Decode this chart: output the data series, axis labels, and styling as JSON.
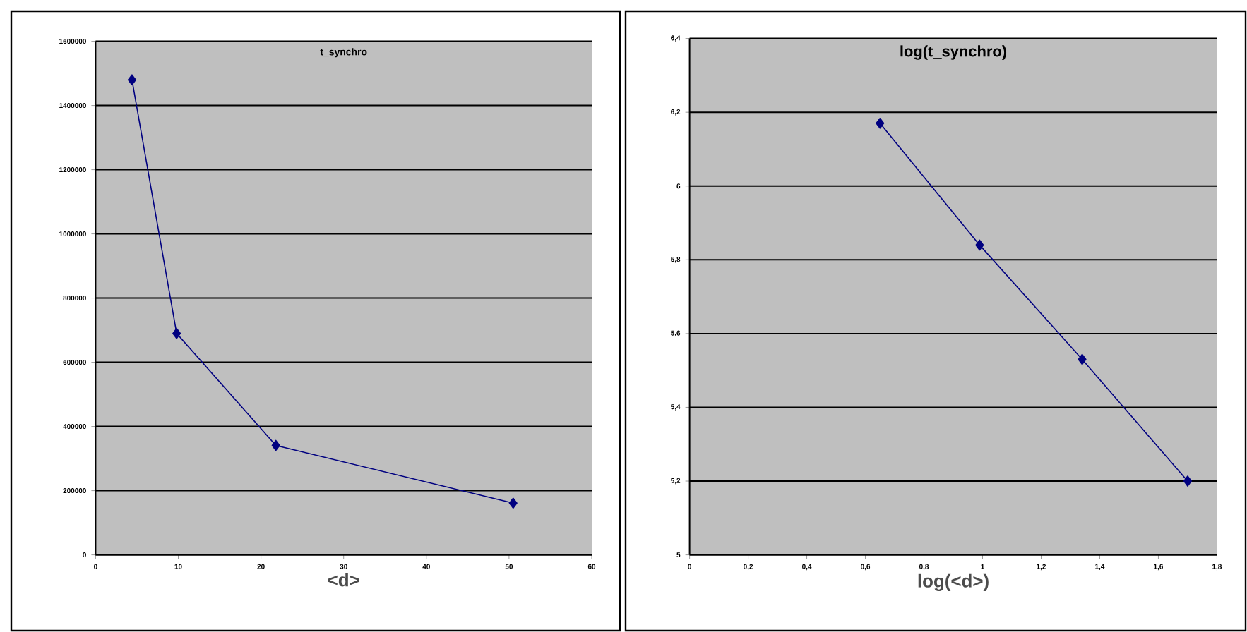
{
  "chart_data": [
    {
      "type": "line",
      "title": "t_synchro",
      "xlabel": "<d>",
      "x": [
        4.4,
        9.8,
        21.8,
        50.5
      ],
      "series": [
        {
          "color": "#000080",
          "values": [
            1480000,
            690000,
            341000,
            161000
          ]
        }
      ],
      "xlim": [
        0,
        60
      ],
      "xticks": [
        0,
        10,
        20,
        30,
        40,
        50,
        60
      ],
      "ylim": [
        0,
        1600000
      ],
      "yticks": [
        0,
        200000,
        400000,
        600000,
        800000,
        1000000,
        1200000,
        1400000,
        1600000
      ],
      "grid": "y",
      "marker": "diamond",
      "line_style": "solid"
    },
    {
      "type": "line",
      "title": "log(t_synchro)",
      "xlabel": "log(<d>)",
      "x": [
        0.65,
        0.99,
        1.34,
        1.7
      ],
      "series": [
        {
          "color": "#000080",
          "values": [
            6.17,
            5.84,
            5.53,
            5.2
          ]
        }
      ],
      "xlim": [
        0,
        1.8
      ],
      "xticks": [
        0,
        {
          "value": 0.2,
          "label": "0,2"
        },
        {
          "value": 0.4,
          "label": "0,4"
        },
        {
          "value": 0.6,
          "label": "0,6"
        },
        {
          "value": 0.8,
          "label": "0,8"
        },
        1,
        {
          "value": 1.2,
          "label": "1,2"
        },
        {
          "value": 1.4,
          "label": "1,4"
        },
        {
          "value": 1.6,
          "label": "1,6"
        },
        {
          "value": 1.8,
          "label": "1,8"
        }
      ],
      "ylim": [
        5,
        6.4
      ],
      "yticks": [
        5,
        {
          "value": 5.2,
          "label": "5,2"
        },
        {
          "value": 5.4,
          "label": "5,4"
        },
        {
          "value": 5.6,
          "label": "5,6"
        },
        {
          "value": 5.8,
          "label": "5,8"
        },
        6,
        {
          "value": 6.2,
          "label": "6,2"
        },
        {
          "value": 6.4,
          "label": "6,4"
        }
      ],
      "grid": "y",
      "marker": "diamond",
      "line_style": "solid"
    }
  ]
}
